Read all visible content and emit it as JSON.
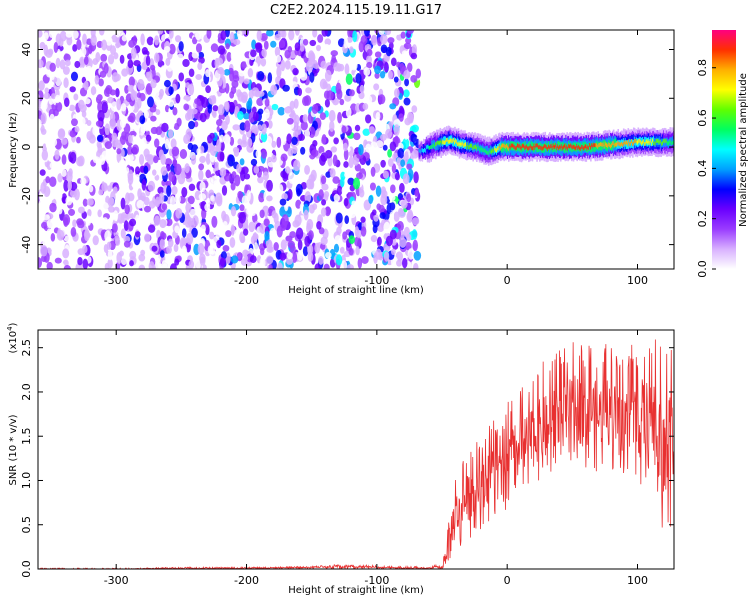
{
  "title": "C2E2.2024.115.19.11.G17",
  "chart_data": [
    {
      "type": "heatmap",
      "xlabel": "Height of straight line (km)",
      "ylabel": "Frequency (Hz)",
      "xlim": [
        -360,
        128
      ],
      "ylim": [
        -50,
        48
      ],
      "x_ticks": [
        -300,
        -200,
        -100,
        0,
        100
      ],
      "x_tick_labels": [
        "-300",
        "-200",
        "-100",
        "0",
        "100"
      ],
      "y_ticks": [
        -40,
        -20,
        0,
        20,
        40
      ],
      "y_tick_labels": [
        "-40",
        "-20",
        "0",
        "20",
        "40"
      ],
      "noise_region_x": [
        -360,
        -68
      ],
      "signal_region_x": [
        -68,
        128
      ],
      "signal_track": {
        "x": [
          -68,
          -55,
          -45,
          -35,
          -25,
          -15,
          -5,
          5,
          20,
          40,
          60,
          80,
          100,
          115,
          128
        ],
        "freq": [
          -2,
          1,
          3,
          1,
          0,
          -2,
          0,
          0,
          0,
          0,
          0,
          1,
          2,
          2,
          2
        ],
        "amplitude": [
          0.4,
          0.6,
          0.75,
          0.7,
          0.6,
          0.55,
          0.8,
          0.85,
          0.85,
          0.85,
          0.85,
          0.8,
          0.75,
          0.65,
          0.55
        ]
      },
      "colorbar": {
        "label": "Normalized spectral amplitude",
        "range": [
          0,
          0.95
        ],
        "ticks": [
          0.0,
          0.2,
          0.4,
          0.6,
          0.8
        ],
        "tick_labels": [
          "0.0",
          "0.2",
          "0.4",
          "0.6",
          "0.8"
        ],
        "colors": [
          "#ffffff",
          "#d8b0ff",
          "#9a3cff",
          "#6a00ff",
          "#0000ff",
          "#00a0ff",
          "#00ffff",
          "#00ff60",
          "#60ff00",
          "#ffff00",
          "#ffb000",
          "#ff3000",
          "#ff0080"
        ]
      }
    },
    {
      "type": "line",
      "xlabel": "Height of straight line (km)",
      "ylabel": "SNR (10 * v/v)",
      "exponent_label": "(x10",
      "exponent_power": "4",
      "exponent_close": ")",
      "xlim": [
        -360,
        128
      ],
      "ylim": [
        0,
        2.7
      ],
      "x_ticks": [
        -300,
        -200,
        -100,
        0,
        100
      ],
      "x_tick_labels": [
        "-300",
        "-200",
        "-100",
        "0",
        "100"
      ],
      "y_ticks": [
        0.0,
        0.5,
        1.0,
        1.5,
        2.0,
        2.5
      ],
      "y_tick_labels": [
        "0.0",
        "0.5",
        "1.0",
        "1.5",
        "2.0",
        "2.5"
      ],
      "line_color": "#e83030",
      "series": [
        {
          "x": [
            -360,
            -300,
            -250,
            -200,
            -150,
            -130,
            -120,
            -100,
            -80,
            -60,
            -50,
            -45,
            -40,
            -35,
            -30,
            -25,
            -20,
            -15,
            -10,
            -5,
            0,
            5,
            10,
            15,
            20,
            25,
            30,
            35,
            40,
            45,
            50,
            55,
            60,
            65,
            70,
            75,
            80,
            85,
            90,
            95,
            100,
            105,
            110,
            115,
            120,
            125,
            128
          ],
          "values": [
            0.0,
            0.0,
            0.01,
            0.01,
            0.02,
            0.03,
            0.03,
            0.02,
            0.01,
            0.01,
            0.02,
            0.3,
            0.6,
            0.7,
            0.8,
            0.9,
            0.95,
            1.05,
            1.1,
            1.0,
            1.2,
            1.3,
            1.35,
            1.4,
            1.5,
            1.55,
            1.6,
            1.65,
            1.7,
            1.75,
            1.8,
            1.8,
            1.75,
            1.8,
            1.7,
            1.85,
            1.7,
            1.75,
            1.65,
            1.8,
            1.6,
            1.75,
            1.55,
            1.6,
            1.2,
            1.5,
            1.4
          ],
          "envelope_max": [
            0.01,
            0.01,
            0.02,
            0.02,
            0.03,
            0.05,
            0.05,
            0.04,
            0.03,
            0.03,
            0.06,
            0.85,
            1.1,
            1.2,
            1.3,
            1.4,
            1.5,
            1.65,
            1.7,
            1.6,
            1.9,
            2.0,
            2.1,
            2.2,
            2.3,
            2.35,
            2.4,
            2.45,
            2.5,
            2.5,
            2.6,
            2.55,
            2.5,
            2.6,
            2.45,
            2.55,
            2.5,
            2.5,
            2.4,
            2.55,
            2.45,
            2.65,
            2.5,
            2.7,
            2.6,
            2.6,
            2.5
          ],
          "envelope_min": [
            0.0,
            0.0,
            0.0,
            0.0,
            0.0,
            0.0,
            0.0,
            0.0,
            0.0,
            0.0,
            0.0,
            0.05,
            0.15,
            0.25,
            0.3,
            0.4,
            0.45,
            0.5,
            0.6,
            0.55,
            0.7,
            0.8,
            0.85,
            0.9,
            1.0,
            1.0,
            1.05,
            1.1,
            1.15,
            1.2,
            1.2,
            1.15,
            1.1,
            1.2,
            1.05,
            1.2,
            1.1,
            1.15,
            1.0,
            1.1,
            0.9,
            1.0,
            0.6,
            0.7,
            0.35,
            0.45,
            0.8
          ]
        }
      ]
    }
  ]
}
